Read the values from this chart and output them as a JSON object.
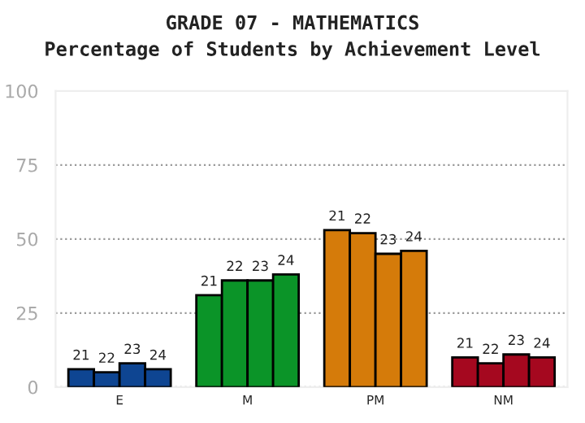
{
  "chart_data": {
    "type": "bar",
    "title": "GRADE 07 - MATHEMATICS",
    "subtitle": "Percentage of Students by Achievement Level",
    "categories": [
      "E",
      "M",
      "PM",
      "NM"
    ],
    "series": [
      {
        "name": "21",
        "colors": [
          "#0e4592",
          "#0b9428",
          "#d57b0a",
          "#a5081f"
        ],
        "values": [
          6,
          31,
          53,
          10
        ]
      },
      {
        "name": "22",
        "colors": [
          "#0e4592",
          "#0b9428",
          "#d57b0a",
          "#a5081f"
        ],
        "values": [
          5,
          36,
          52,
          8
        ]
      },
      {
        "name": "23",
        "colors": [
          "#0e4592",
          "#0b9428",
          "#d57b0a",
          "#a5081f"
        ],
        "values": [
          8,
          36,
          45,
          11
        ]
      },
      {
        "name": "24",
        "colors": [
          "#0e4592",
          "#0b9428",
          "#d57b0a",
          "#a5081f"
        ],
        "values": [
          6,
          38,
          46,
          10
        ]
      }
    ],
    "ylim": [
      0,
      100
    ],
    "yticks": [
      0,
      25,
      50,
      75,
      100
    ],
    "grid": "y",
    "legend": false
  }
}
